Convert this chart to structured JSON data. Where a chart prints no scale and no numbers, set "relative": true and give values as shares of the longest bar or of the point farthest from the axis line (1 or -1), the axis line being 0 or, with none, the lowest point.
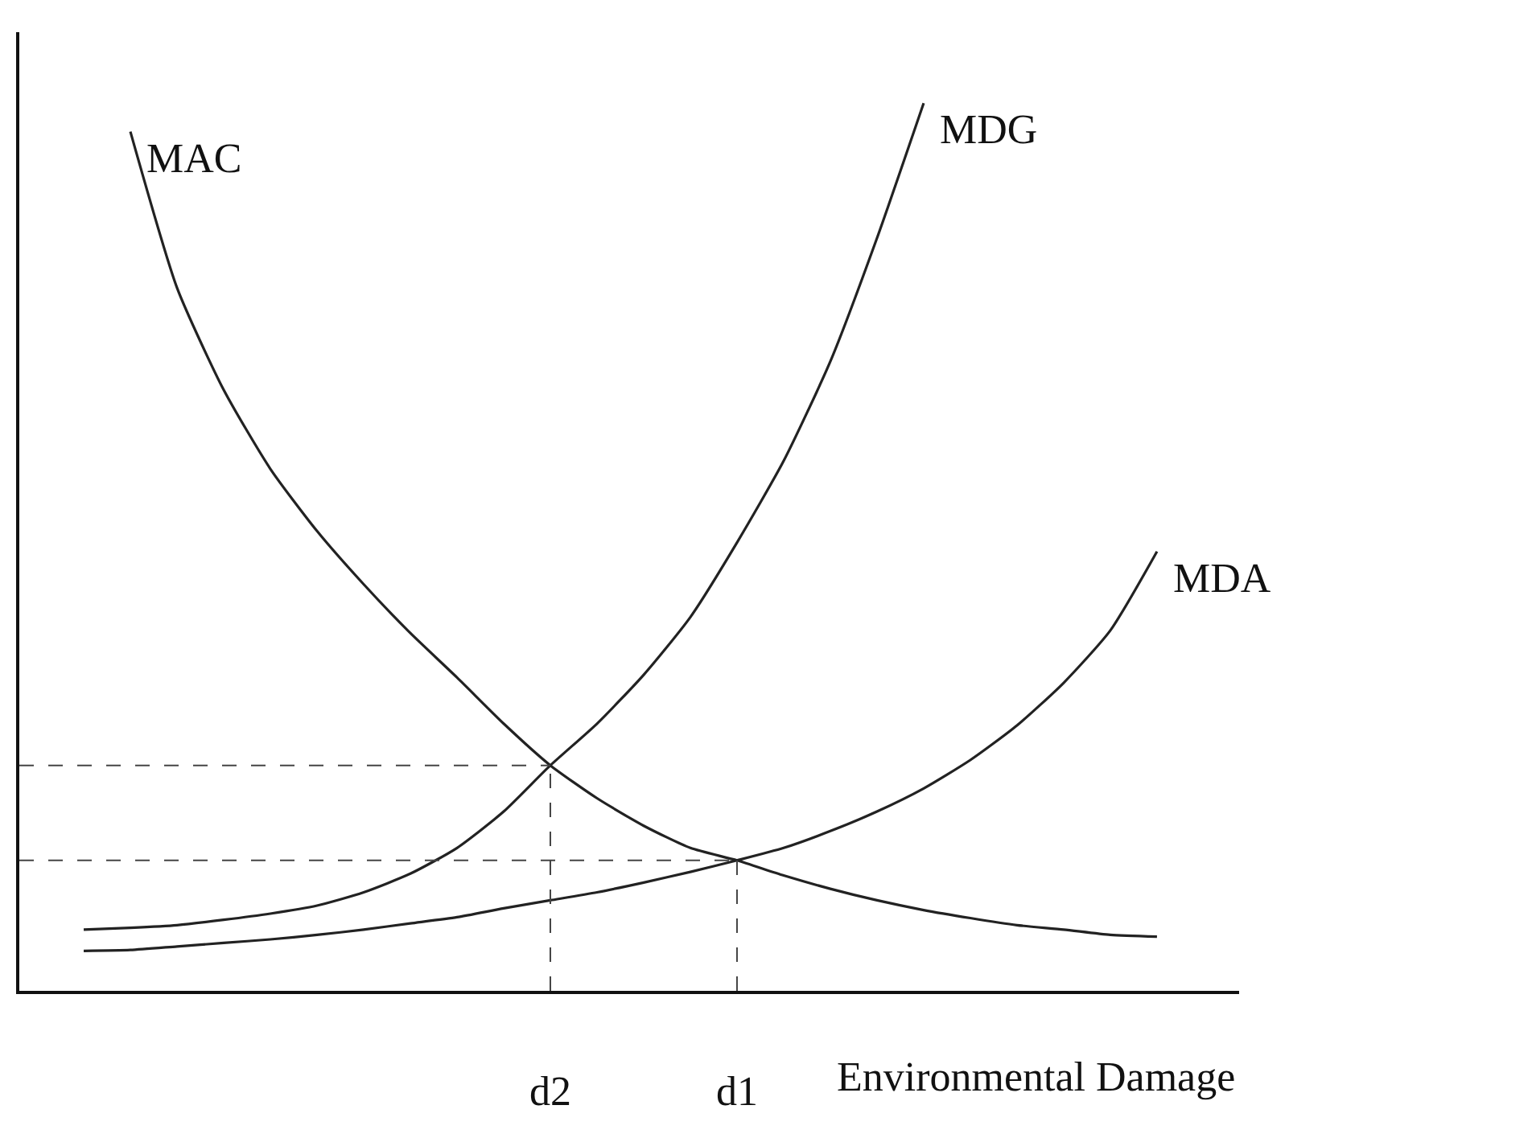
{
  "chart_data": {
    "type": "line",
    "relative": true,
    "xlabel": "Environmental Damage",
    "categories": [
      null,
      null,
      null,
      null,
      null,
      null,
      null,
      null,
      null,
      null,
      "d2",
      null,
      null,
      null,
      "d1",
      null,
      null,
      null,
      null,
      null,
      null,
      null,
      null,
      null,
      null
    ],
    "series": [
      {
        "name": "MAC",
        "color": "#222222",
        "values": [
          null,
          0.968,
          0.792,
          0.677,
          0.588,
          0.518,
          0.458,
          0.403,
          0.353,
          0.301,
          0.254,
          0.217,
          0.186,
          0.161,
          0.147,
          0.13,
          0.115,
          0.102,
          0.091,
          0.082,
          0.074,
          0.069,
          0.063,
          0.061,
          null
        ]
      },
      {
        "name": "MDG",
        "color": "#222222",
        "values": [
          0.069,
          0.071,
          0.074,
          0.08,
          0.087,
          0.096,
          0.111,
          0.132,
          0.161,
          0.202,
          0.254,
          0.301,
          0.356,
          0.421,
          0.505,
          0.597,
          0.709,
          0.848,
          1,
          null,
          null,
          null,
          null,
          null,
          null
        ]
      },
      {
        "name": "MDA",
        "color": "#222222",
        "values": [
          0.045,
          0.046,
          0.05,
          0.054,
          0.058,
          0.063,
          0.069,
          0.076,
          0.083,
          0.093,
          0.102,
          0.111,
          0.122,
          0.134,
          0.147,
          0.161,
          0.18,
          0.202,
          0.228,
          0.26,
          0.299,
          0.347,
          0.406,
          0.495,
          null
        ]
      }
    ],
    "ref_lines": [
      {
        "axis": "x",
        "value": "d2",
        "line_style": "dashed",
        "color": "#444444"
      },
      {
        "axis": "x",
        "value": "d1",
        "line_style": "dashed",
        "color": "#444444"
      },
      {
        "axis": "y",
        "value": 0.254,
        "line_style": "dashed",
        "color": "#444444"
      },
      {
        "axis": "y",
        "value": 0.147,
        "line_style": "dashed",
        "color": "#444444"
      }
    ],
    "legend": false,
    "marker": "none",
    "line_style": "solid"
  }
}
